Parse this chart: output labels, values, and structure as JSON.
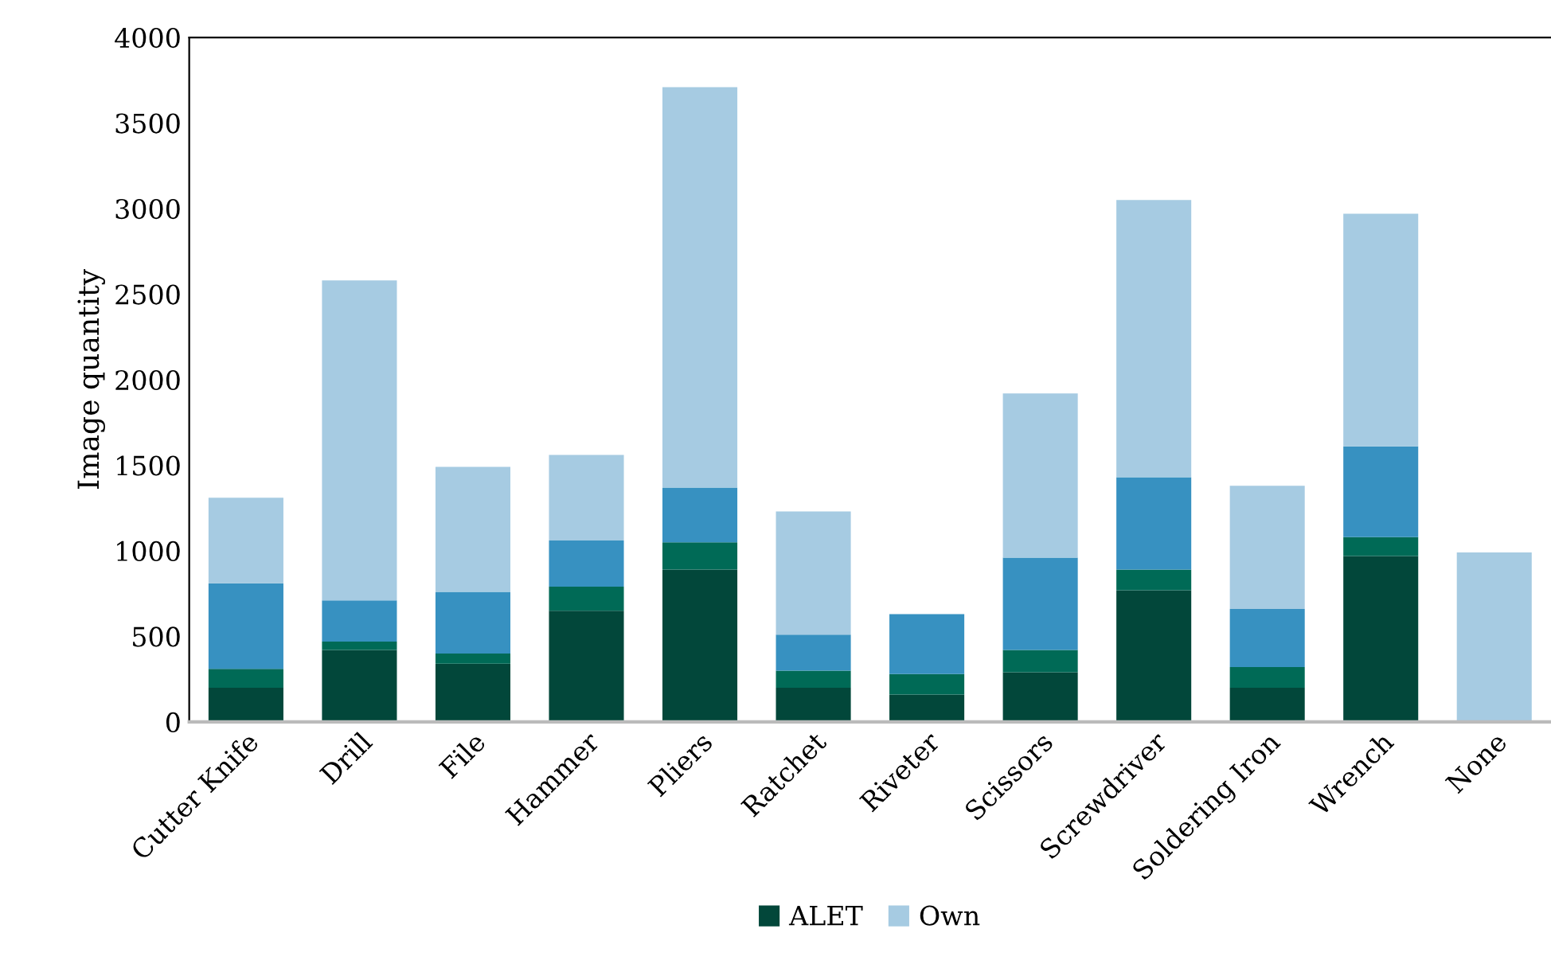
{
  "chart_data": {
    "type": "bar",
    "stacked": true,
    "ylabel": "Image quantity",
    "categories": [
      "Cutter Knife",
      "Drill",
      "File",
      "Hammer",
      "Pliers",
      "Ratchet",
      "Riveter",
      "Scissors",
      "Screwdriver",
      "Soldering Iron",
      "Wrench",
      "None"
    ],
    "series": [
      {
        "name": "ALET",
        "color": "#02473a",
        "values": [
          200,
          420,
          340,
          650,
          890,
          200,
          160,
          290,
          770,
          200,
          970,
          0
        ]
      },
      {
        "color": "#006a56",
        "values": [
          110,
          50,
          60,
          140,
          160,
          100,
          120,
          130,
          120,
          120,
          110,
          0
        ]
      },
      {
        "color": "#3791c1",
        "values": [
          500,
          240,
          360,
          270,
          320,
          210,
          350,
          540,
          540,
          340,
          530,
          0
        ]
      },
      {
        "name": "Own",
        "color": "#a6cbe2",
        "values": [
          500,
          1870,
          730,
          500,
          2340,
          720,
          0,
          960,
          1620,
          720,
          1360,
          990
        ]
      }
    ],
    "ylim": [
      0,
      4000
    ],
    "yticks": [
      0,
      500,
      1000,
      1500,
      2000,
      2500,
      3000,
      3500,
      4000
    ],
    "grid": false,
    "legend": "bottom"
  }
}
